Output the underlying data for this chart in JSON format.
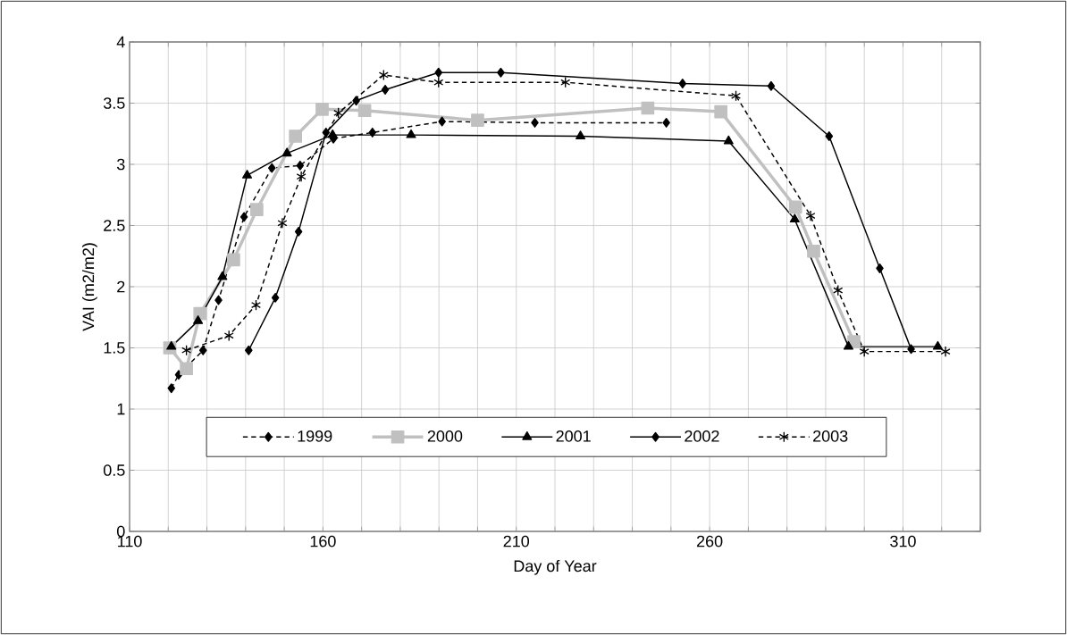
{
  "chart_data": {
    "type": "line",
    "xlabel": "Day of Year",
    "ylabel": "VAI (m2/m2)",
    "xlim": [
      110,
      330
    ],
    "xticks": [
      110,
      {
        "value": 120,
        "label": null
      },
      {
        "value": 130,
        "label": null
      },
      {
        "value": 140,
        "label": null
      },
      {
        "value": 150,
        "label": null
      },
      160,
      {
        "value": 170,
        "label": null
      },
      {
        "value": 180,
        "label": null
      },
      {
        "value": 190,
        "label": null
      },
      {
        "value": 200,
        "label": null
      },
      210,
      {
        "value": 220,
        "label": null
      },
      {
        "value": 230,
        "label": null
      },
      {
        "value": 240,
        "label": null
      },
      {
        "value": 250,
        "label": null
      },
      260,
      {
        "value": 270,
        "label": null
      },
      {
        "value": 280,
        "label": null
      },
      {
        "value": 290,
        "label": null
      },
      {
        "value": 300,
        "label": null
      },
      310,
      {
        "value": 320,
        "label": null
      },
      {
        "value": 330,
        "label": null
      }
    ],
    "ylim": [
      0,
      4
    ],
    "yticks": [
      0,
      0.5,
      1,
      1.5,
      2,
      2.5,
      3,
      3.5,
      4
    ],
    "grid": true,
    "legend": "bottom",
    "series": [
      {
        "name": "1999",
        "color": "#000000",
        "marker": "diamond",
        "line_style": "dashed",
        "x": [
          120.8,
          122.7,
          129,
          133,
          139.6,
          146.8,
          154.1,
          162.7,
          172.8,
          190.8,
          214.8,
          248.8
        ],
        "values": [
          1.17,
          1.28,
          1.48,
          1.89,
          2.57,
          2.97,
          2.99,
          3.21,
          3.26,
          3.35,
          3.34,
          3.34
        ]
      },
      {
        "name": "2000",
        "color": "#c0c0c0",
        "marker": "square",
        "line_style": "solid",
        "x": [
          120.4,
          124.7,
          128.2,
          136.9,
          142.9,
          152.9,
          159.8,
          170.8,
          200,
          244,
          262.9,
          282.2,
          286.9,
          297.3
        ],
        "values": [
          1.5,
          1.33,
          1.78,
          2.22,
          2.63,
          3.23,
          3.45,
          3.44,
          3.36,
          3.46,
          3.43,
          2.65,
          2.29,
          1.55
        ]
      },
      {
        "name": "2001",
        "color": "#000000",
        "marker": "triangle",
        "line_style": "solid",
        "x": [
          120.8,
          127.7,
          134,
          140.4,
          150.7,
          162.5,
          182.8,
          226.6,
          264.9,
          282,
          295.9,
          319
        ],
        "values": [
          1.51,
          1.72,
          2.08,
          2.91,
          3.09,
          3.24,
          3.24,
          3.23,
          3.19,
          2.55,
          1.51,
          1.51
        ]
      },
      {
        "name": "2002",
        "color": "#000000",
        "marker": "diamond",
        "line_style": "solid",
        "x": [
          140.8,
          147.7,
          153.7,
          160.8,
          168.6,
          176.1,
          189.9,
          206,
          253,
          275.9,
          290.9,
          304,
          312.1
        ],
        "values": [
          1.48,
          1.91,
          2.45,
          3.26,
          3.52,
          3.61,
          3.75,
          3.75,
          3.66,
          3.64,
          3.23,
          2.15,
          1.49
        ]
      },
      {
        "name": "2003",
        "color": "#000000",
        "marker": "cross",
        "line_style": "dashed",
        "x": [
          124.7,
          135.7,
          142.7,
          149.5,
          154.4,
          164,
          175.7,
          189.9,
          222.7,
          266.8,
          286.1,
          293.2,
          300,
          321
        ],
        "values": [
          1.48,
          1.6,
          1.85,
          2.52,
          2.9,
          3.42,
          3.73,
          3.67,
          3.67,
          3.56,
          2.58,
          1.97,
          1.47,
          1.47
        ]
      }
    ]
  }
}
